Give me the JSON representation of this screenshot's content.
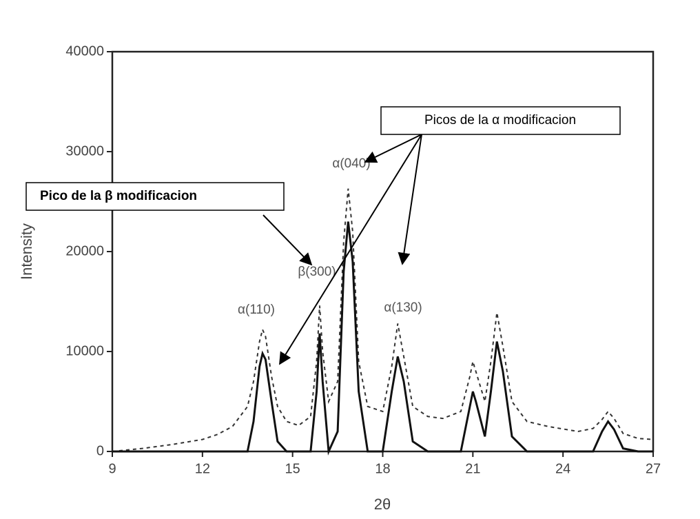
{
  "chart_data": {
    "type": "line",
    "xlabel": "2θ",
    "ylabel": "Intensity",
    "xlim": [
      9,
      27
    ],
    "xticks": [
      9,
      12,
      15,
      18,
      21,
      24,
      27
    ],
    "ylim": [
      0,
      40000
    ],
    "yticks": [
      0,
      10000,
      20000,
      30000,
      40000
    ],
    "x": [
      9,
      10,
      11,
      12,
      12.5,
      13,
      13.5,
      13.7,
      13.9,
      14.0,
      14.1,
      14.3,
      14.5,
      14.8,
      15.2,
      15.6,
      15.8,
      15.9,
      16.0,
      16.2,
      16.5,
      16.7,
      16.85,
      17.0,
      17.2,
      17.5,
      18.0,
      18.3,
      18.5,
      18.7,
      19.0,
      19.5,
      20.0,
      20.6,
      20.9,
      21.0,
      21.1,
      21.4,
      21.6,
      21.8,
      22.0,
      22.3,
      22.8,
      23.5,
      24.5,
      25.0,
      25.3,
      25.5,
      25.7,
      26.0,
      26.5,
      27
    ],
    "series": [
      {
        "color": "#333333",
        "dash": true,
        "values": [
          0,
          300,
          700,
          1200,
          1700,
          2500,
          4500,
          7000,
          11000,
          12200,
          11500,
          7500,
          4500,
          3000,
          2600,
          3500,
          9000,
          14600,
          10000,
          5000,
          7000,
          21000,
          26300,
          22000,
          9000,
          4500,
          4000,
          8500,
          12800,
          9500,
          4500,
          3500,
          3300,
          4000,
          7500,
          9000,
          8000,
          5000,
          9000,
          13900,
          10500,
          5000,
          3000,
          2500,
          2000,
          2300,
          3200,
          4000,
          3300,
          1800,
          1300,
          1200
        ]
      },
      {
        "color": "#111111",
        "dash": false,
        "values": [
          0,
          0,
          0,
          0,
          0,
          0,
          0,
          3000,
          8500,
          9800,
          9200,
          5000,
          1000,
          0,
          0,
          0,
          6000,
          11800,
          7000,
          0,
          2000,
          18000,
          23000,
          19000,
          6000,
          0,
          0,
          6000,
          9500,
          7000,
          1000,
          0,
          0,
          0,
          4500,
          6000,
          5000,
          1500,
          6000,
          11000,
          8000,
          1500,
          0,
          0,
          0,
          0,
          2000,
          3000,
          2200,
          300,
          0,
          0
        ]
      }
    ],
    "peak_labels": [
      "α(110)",
      "β(300)",
      "α(040)",
      "α(130)"
    ],
    "annotations": [
      "Picos de la α modificacion",
      "Pico de la β modificacion"
    ]
  }
}
